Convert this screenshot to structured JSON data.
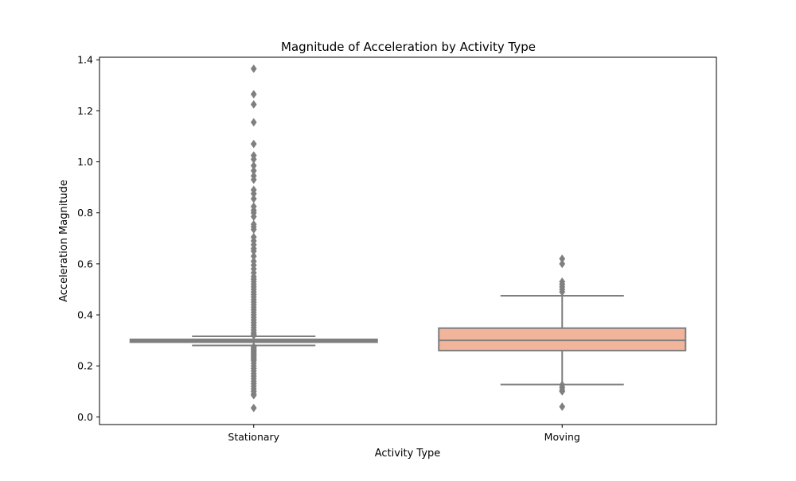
{
  "chart_data": {
    "type": "box",
    "title": "Magnitude of Acceleration by Activity Type",
    "xlabel": "Activity Type",
    "ylabel": "Acceleration Magnitude",
    "categories": [
      "Stationary",
      "Moving"
    ],
    "ylim": [
      -0.03,
      1.41
    ],
    "yticks": [
      0.0,
      0.2,
      0.4,
      0.6,
      0.8,
      1.0,
      1.2,
      1.4
    ],
    "ytick_labels": [
      "0.0",
      "0.2",
      "0.4",
      "0.6",
      "0.8",
      "1.0",
      "1.2",
      "1.4"
    ],
    "grid": false,
    "series": [
      {
        "category": "Stationary",
        "q1": 0.293,
        "median": 0.299,
        "q3": 0.304,
        "whisker_low": 0.28,
        "whisker_high": 0.316,
        "color": "#808080",
        "outliers": [
          1.365,
          1.265,
          1.225,
          1.155,
          1.07,
          1.025,
          1.01,
          0.985,
          0.965,
          0.945,
          0.93,
          0.89,
          0.875,
          0.855,
          0.825,
          0.81,
          0.8,
          0.785,
          0.755,
          0.745,
          0.735,
          0.705,
          0.69,
          0.675,
          0.66,
          0.65,
          0.63,
          0.61,
          0.595,
          0.58,
          0.565,
          0.55,
          0.54,
          0.53,
          0.52,
          0.51,
          0.5,
          0.49,
          0.48,
          0.47,
          0.46,
          0.45,
          0.44,
          0.43,
          0.42,
          0.41,
          0.4,
          0.39,
          0.38,
          0.37,
          0.36,
          0.35,
          0.34,
          0.33,
          0.325,
          0.32,
          0.275,
          0.27,
          0.265,
          0.26,
          0.255,
          0.25,
          0.245,
          0.24,
          0.235,
          0.23,
          0.225,
          0.22,
          0.21,
          0.2,
          0.19,
          0.18,
          0.17,
          0.16,
          0.15,
          0.14,
          0.13,
          0.12,
          0.11,
          0.1,
          0.09,
          0.085,
          0.035
        ]
      },
      {
        "category": "Moving",
        "q1": 0.26,
        "median": 0.3,
        "q3": 0.348,
        "whisker_low": 0.127,
        "whisker_high": 0.475,
        "color": "#f2b49a",
        "outliers": [
          0.62,
          0.6,
          0.53,
          0.52,
          0.51,
          0.5,
          0.49,
          0.125,
          0.115,
          0.105,
          0.1,
          0.04
        ]
      }
    ]
  }
}
